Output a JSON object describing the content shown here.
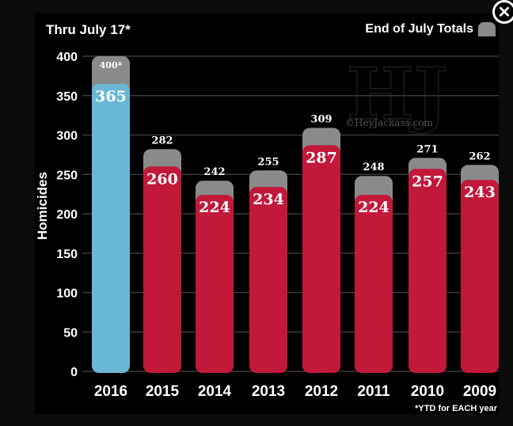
{
  "header": {
    "title": "Thru July 17*"
  },
  "legend": {
    "label": "End of July Totals",
    "swatch_color": "#8a8a8a"
  },
  "footnote": "*YTD for EACH year",
  "watermark": {
    "mark": "HJ",
    "text": "©HeyJackass.com"
  },
  "close_icon": "close-icon",
  "colors": {
    "current": "#6ab8d6",
    "past": "#c2183a",
    "month_total": "#8a8a8a"
  },
  "chart_data": {
    "type": "bar",
    "categories": [
      "2016",
      "2015",
      "2014",
      "2013",
      "2012",
      "2011",
      "2010",
      "2009"
    ],
    "series": [
      {
        "name": "Thru July 17*",
        "values": [
          365,
          260,
          224,
          234,
          287,
          224,
          257,
          243
        ]
      },
      {
        "name": "End of July Totals",
        "values": [
          400,
          282,
          242,
          255,
          309,
          248,
          271,
          262
        ]
      }
    ],
    "total_labels": [
      "400*",
      "282",
      "242",
      "255",
      "309",
      "248",
      "271",
      "262"
    ],
    "ylabel": "Homicides",
    "ylim": [
      0,
      400
    ],
    "yticks": [
      0,
      50,
      100,
      150,
      200,
      250,
      300,
      350,
      400
    ],
    "grid": true,
    "legend_position": "top-right"
  }
}
